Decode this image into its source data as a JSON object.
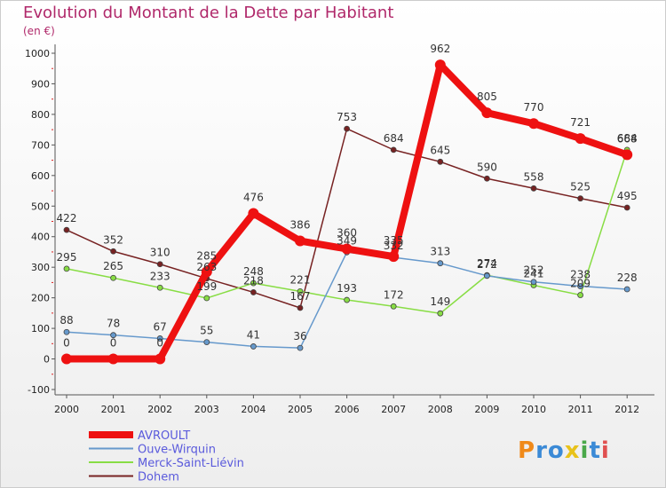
{
  "title": "Evolution du Montant de la Dette par Habitant",
  "unit": "(en €)",
  "logo": {
    "text": "Proxiti",
    "letters": [
      {
        "ch": "P",
        "color": "#f08a1a"
      },
      {
        "ch": "r",
        "color": "#3b8ad6"
      },
      {
        "ch": "o",
        "color": "#3b8ad6"
      },
      {
        "ch": "x",
        "color": "#e8c21a"
      },
      {
        "ch": "i",
        "color": "#4aa84a"
      },
      {
        "ch": "t",
        "color": "#3b8ad6"
      },
      {
        "ch": "i",
        "color": "#e05050"
      }
    ]
  },
  "chart_data": {
    "type": "line",
    "title": "Evolution du Montant de la Dette par Habitant",
    "ylabel": "(en €)",
    "xlabel": "",
    "x": [
      "2000",
      "2001",
      "2002",
      "2003",
      "2004",
      "2005",
      "2006",
      "2007",
      "2008",
      "2009",
      "2010",
      "2011",
      "2012"
    ],
    "ylim": [
      -100,
      1000
    ],
    "yticks": [
      -100,
      0,
      100,
      200,
      300,
      400,
      500,
      600,
      700,
      800,
      900,
      1000
    ],
    "grid": false,
    "legend_position": "bottom-left",
    "series": [
      {
        "name": "AVROULT",
        "color": "#ee1111",
        "width": 8,
        "marker_r": 6,
        "values": [
          0,
          0,
          0,
          285,
          476,
          386,
          360,
          335,
          962,
          805,
          770,
          721,
          668
        ]
      },
      {
        "name": "Ouve-Wirquin",
        "color": "#6699cc",
        "width": 1.5,
        "marker_r": 3,
        "values": [
          88,
          78,
          67,
          55,
          41,
          36,
          349,
          332,
          313,
          272,
          252,
          238,
          228
        ]
      },
      {
        "name": "Merck-Saint-Liévin",
        "color": "#88dd44",
        "width": 1.5,
        "marker_r": 3,
        "values": [
          295,
          265,
          233,
          199,
          248,
          221,
          193,
          172,
          149,
          274,
          241,
          209,
          684
        ]
      },
      {
        "name": "Dohem",
        "color": "#772222",
        "width": 1.5,
        "marker_r": 3,
        "values": [
          422,
          352,
          310,
          263,
          218,
          167,
          753,
          684,
          645,
          590,
          558,
          525,
          495
        ]
      }
    ]
  }
}
